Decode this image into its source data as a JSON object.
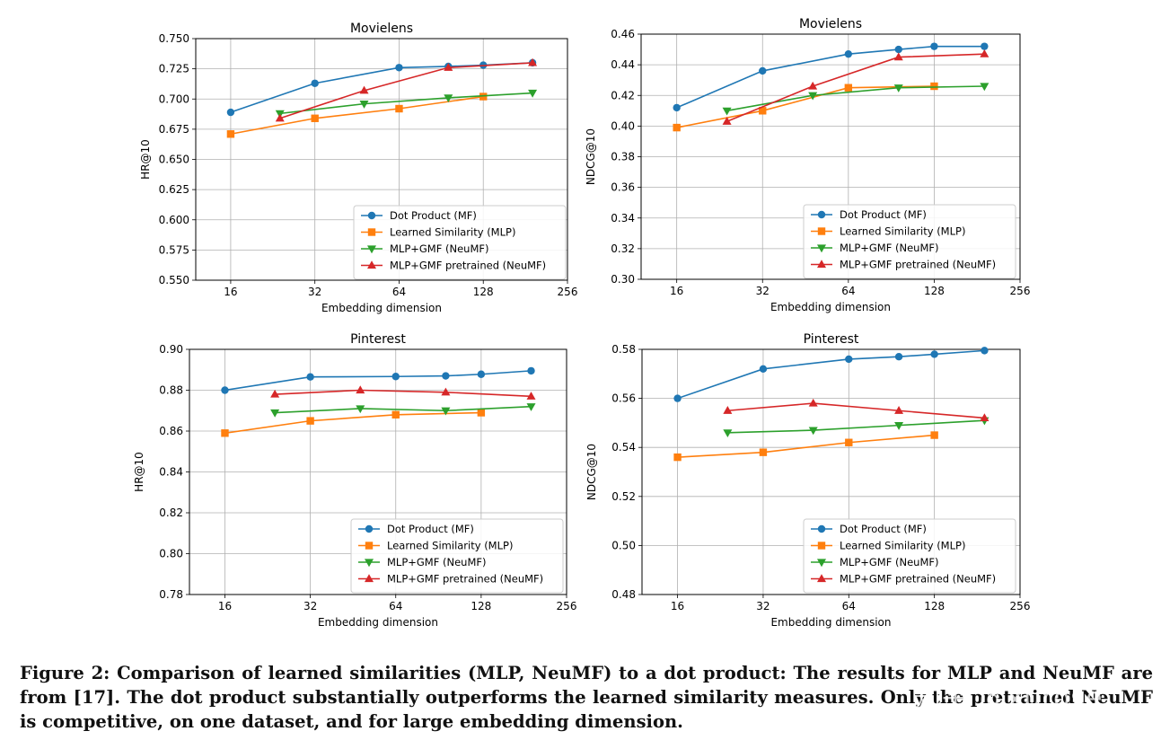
{
  "chart_data": [
    {
      "type": "line",
      "title": "Movielens",
      "xlabel": "Embedding dimension",
      "ylabel": "HR@10",
      "xscale": "log2",
      "x_ticks": [
        16,
        32,
        64,
        128,
        256
      ],
      "xlim": [
        12,
        256
      ],
      "ylim": [
        0.55,
        0.75
      ],
      "y_ticks": [
        "0.550",
        "0.575",
        "0.600",
        "0.625",
        "0.650",
        "0.675",
        "0.700",
        "0.725",
        "0.750"
      ],
      "grid": true,
      "legend_position": "lower-right",
      "series": [
        {
          "name": "Dot Product (MF)",
          "color": "#1f77b4",
          "marker": "circle",
          "x": [
            16,
            32,
            64,
            96,
            128,
            192
          ],
          "y": [
            0.689,
            0.713,
            0.726,
            0.727,
            0.728,
            0.73
          ]
        },
        {
          "name": "Learned Similarity (MLP)",
          "color": "#ff7f0e",
          "marker": "square",
          "x": [
            16,
            32,
            64,
            128
          ],
          "y": [
            0.671,
            0.684,
            0.692,
            0.702
          ]
        },
        {
          "name": "MLP+GMF (NeuMF)",
          "color": "#2ca02c",
          "marker": "triangle-down",
          "x": [
            24,
            48,
            96,
            192
          ],
          "y": [
            0.688,
            0.696,
            0.701,
            0.705
          ]
        },
        {
          "name": "MLP+GMF pretrained (NeuMF)",
          "color": "#d62728",
          "marker": "triangle-up",
          "x": [
            24,
            48,
            96,
            192
          ],
          "y": [
            0.684,
            0.707,
            0.726,
            0.73
          ]
        }
      ]
    },
    {
      "type": "line",
      "title": "Movielens",
      "xlabel": "Embedding dimension",
      "ylabel": "NDCG@10",
      "xscale": "log2",
      "x_ticks": [
        16,
        32,
        64,
        128,
        256
      ],
      "xlim": [
        12,
        256
      ],
      "ylim": [
        0.3,
        0.46
      ],
      "y_ticks": [
        "0.30",
        "0.32",
        "0.34",
        "0.36",
        "0.38",
        "0.40",
        "0.42",
        "0.44",
        "0.46"
      ],
      "grid": true,
      "legend_position": "lower-right",
      "series": [
        {
          "name": "Dot Product (MF)",
          "color": "#1f77b4",
          "marker": "circle",
          "x": [
            16,
            32,
            64,
            96,
            128,
            192
          ],
          "y": [
            0.412,
            0.436,
            0.447,
            0.45,
            0.452,
            0.452
          ]
        },
        {
          "name": "Learned Similarity (MLP)",
          "color": "#ff7f0e",
          "marker": "square",
          "x": [
            16,
            32,
            64,
            128
          ],
          "y": [
            0.399,
            0.41,
            0.425,
            0.426
          ]
        },
        {
          "name": "MLP+GMF (NeuMF)",
          "color": "#2ca02c",
          "marker": "triangle-down",
          "x": [
            24,
            48,
            96,
            192
          ],
          "y": [
            0.41,
            0.42,
            0.425,
            0.426
          ]
        },
        {
          "name": "MLP+GMF pretrained (NeuMF)",
          "color": "#d62728",
          "marker": "triangle-up",
          "x": [
            24,
            48,
            96,
            192
          ],
          "y": [
            0.403,
            0.426,
            0.445,
            0.447
          ]
        }
      ]
    },
    {
      "type": "line",
      "title": "Pinterest",
      "xlabel": "Embedding dimension",
      "ylabel": "HR@10",
      "xscale": "log2",
      "x_ticks": [
        16,
        32,
        64,
        128,
        256
      ],
      "xlim": [
        12,
        256
      ],
      "ylim": [
        0.78,
        0.9
      ],
      "y_ticks": [
        "0.78",
        "0.80",
        "0.82",
        "0.84",
        "0.86",
        "0.88",
        "0.90"
      ],
      "grid": true,
      "legend_position": "lower-right",
      "series": [
        {
          "name": "Dot Product (MF)",
          "color": "#1f77b4",
          "marker": "circle",
          "x": [
            16,
            32,
            64,
            96,
            128,
            192
          ],
          "y": [
            0.88,
            0.8865,
            0.8867,
            0.887,
            0.8878,
            0.8895
          ]
        },
        {
          "name": "Learned Similarity (MLP)",
          "color": "#ff7f0e",
          "marker": "square",
          "x": [
            16,
            32,
            64,
            128
          ],
          "y": [
            0.859,
            0.865,
            0.868,
            0.869
          ]
        },
        {
          "name": "MLP+GMF (NeuMF)",
          "color": "#2ca02c",
          "marker": "triangle-down",
          "x": [
            24,
            48,
            96,
            192
          ],
          "y": [
            0.869,
            0.871,
            0.87,
            0.872
          ]
        },
        {
          "name": "MLP+GMF pretrained (NeuMF)",
          "color": "#d62728",
          "marker": "triangle-up",
          "x": [
            24,
            48,
            96,
            192
          ],
          "y": [
            0.878,
            0.88,
            0.879,
            0.877
          ]
        }
      ]
    },
    {
      "type": "line",
      "title": "Pinterest",
      "xlabel": "Embedding dimension",
      "ylabel": "NDCG@10",
      "xscale": "log2",
      "x_ticks": [
        16,
        32,
        64,
        128,
        256
      ],
      "xlim": [
        12,
        256
      ],
      "ylim": [
        0.48,
        0.58
      ],
      "y_ticks": [
        "0.48",
        "0.50",
        "0.52",
        "0.54",
        "0.56",
        "0.58"
      ],
      "grid": true,
      "legend_position": "lower-right",
      "series": [
        {
          "name": "Dot Product (MF)",
          "color": "#1f77b4",
          "marker": "circle",
          "x": [
            16,
            32,
            64,
            96,
            128,
            192
          ],
          "y": [
            0.56,
            0.572,
            0.576,
            0.577,
            0.578,
            0.5795
          ]
        },
        {
          "name": "Learned Similarity (MLP)",
          "color": "#ff7f0e",
          "marker": "square",
          "x": [
            16,
            32,
            64,
            128
          ],
          "y": [
            0.536,
            0.538,
            0.542,
            0.545
          ]
        },
        {
          "name": "MLP+GMF (NeuMF)",
          "color": "#2ca02c",
          "marker": "triangle-down",
          "x": [
            24,
            48,
            96,
            192
          ],
          "y": [
            0.546,
            0.547,
            0.549,
            0.551
          ]
        },
        {
          "name": "MLP+GMF pretrained (NeuMF)",
          "color": "#d62728",
          "marker": "triangle-up",
          "x": [
            24,
            48,
            96,
            192
          ],
          "y": [
            0.555,
            0.558,
            0.555,
            0.552
          ]
        }
      ]
    }
  ],
  "caption": "Figure 2: Comparison of learned similarities (MLP, NeuMF) to a dot product: The results for MLP and NeuMF are from [17]. The dot product substantially outperforms the learned similarity measures. Only the pretrained NeuMF is competitive, on one dataset, and for large embedding dimension.",
  "watermark": "知乎 @xurose"
}
